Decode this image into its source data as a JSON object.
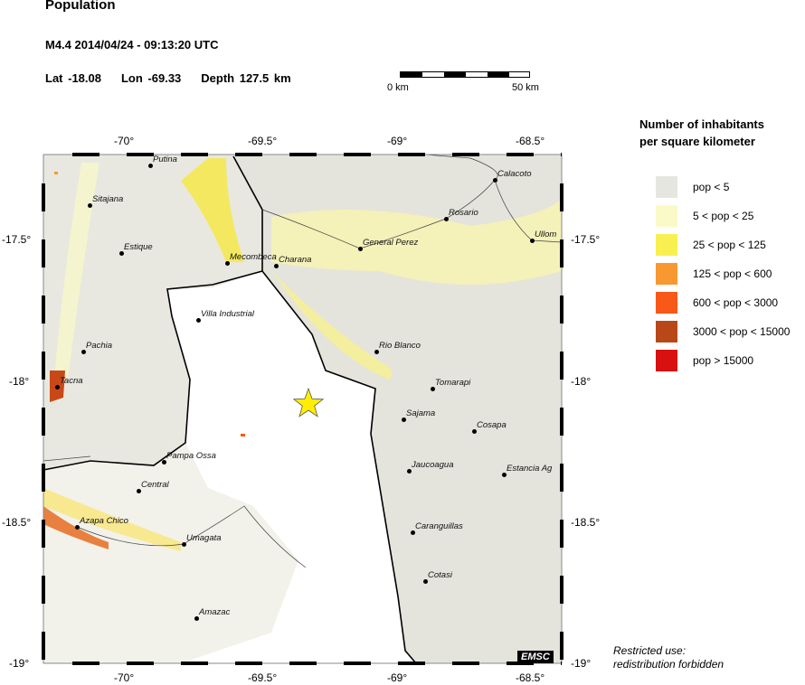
{
  "header": {
    "title": "Population",
    "event": "M4.4  2014/04/24 - 09:13:20 UTC",
    "lat": "Lat -18.08",
    "lon": "Lon -69.33",
    "depth": "Depth 127.5 km"
  },
  "scale_bar": {
    "start": "0 km",
    "end": "50 km"
  },
  "axes": {
    "lon_ticks": [
      "-70°",
      "-69.5°",
      "-69°",
      "-68.5°"
    ],
    "lat_ticks": [
      "-17.5°",
      "-18°",
      "-18.5°",
      "-19°"
    ]
  },
  "epicenter": {
    "lat": -18.08,
    "lon": -69.33,
    "icon": "star-icon",
    "color": "#ffee00"
  },
  "cities": [
    "Putina",
    "Sitajana",
    "Estique",
    "Mecombeca",
    "Charana",
    "General Perez",
    "Rosario",
    "Calacoto",
    "Ullom",
    "Villa Industrial",
    "Pachia",
    "Tacna",
    "Rio Blanco",
    "Tomarapi",
    "Sajama",
    "Cosapa",
    "Pampa Ossa",
    "Jaucoagua",
    "Estancia Ag",
    "Central",
    "Azapa Chico",
    "Umagata",
    "Caranguillas",
    "Cotasi",
    "Amazac"
  ],
  "legend": {
    "title_line1": "Number of inhabitants",
    "title_line2": "per square kilometer",
    "items": [
      {
        "label": "pop < 5",
        "color": "#e6e6e0"
      },
      {
        "label": "5 < pop < 25",
        "color": "#fafac8"
      },
      {
        "label": "25 < pop < 125",
        "color": "#f8f050"
      },
      {
        "label": "125 < pop < 600",
        "color": "#f89830"
      },
      {
        "label": "600 < pop < 3000",
        "color": "#f85818"
      },
      {
        "label": "3000 < pop < 15000",
        "color": "#b84818"
      },
      {
        "label": "pop > 15000",
        "color": "#d81010"
      }
    ]
  },
  "logo": "EMSC",
  "note_line1": "Restricted use:",
  "note_line2": "redistribution forbidden"
}
